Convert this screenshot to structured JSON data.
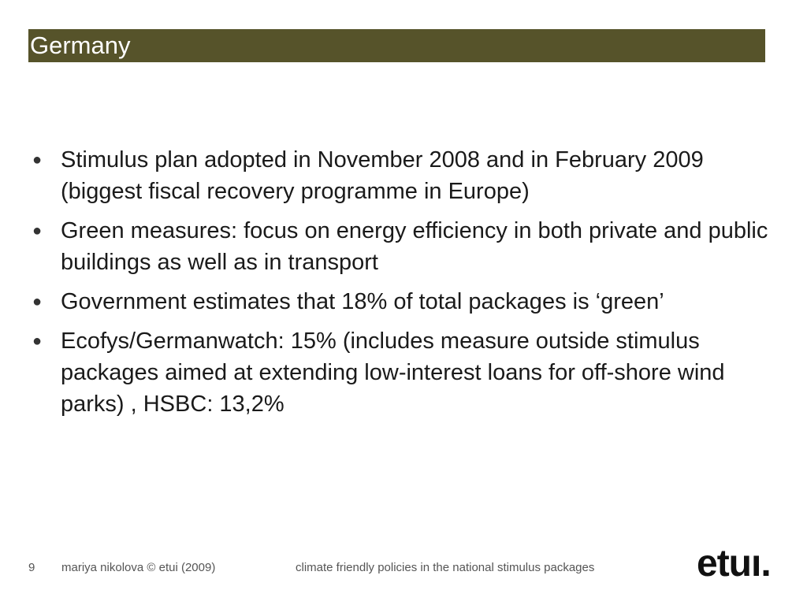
{
  "slide": {
    "title": "Germany",
    "bullets": [
      {
        "text": "Stimulus plan adopted in November 2008 and in February 2009 (biggest fiscal recovery programme in Europe)"
      },
      {
        "text": "Green measures: focus on energy efficiency in both private and public buildings as well as in transport"
      },
      {
        "text": "Government estimates that 18% of total packages is ‘green’"
      },
      {
        "text": "Ecofys/Germanwatch: 15% (includes measure outside stimulus packages aimed at extending low-interest loans for off-shore wind parks) , HSBC: 13,2%"
      }
    ],
    "bullet_glyph": "●"
  },
  "footer": {
    "page_number": "9",
    "author": "mariya nikolova © etui (2009)",
    "topic": "climate friendly policies in the national stimulus packages",
    "logo": "etuı."
  },
  "colors": {
    "title_bar": "#56532a",
    "title_text": "#ffffff",
    "body_text": "#1a1a1a",
    "footer_text": "#555555"
  }
}
